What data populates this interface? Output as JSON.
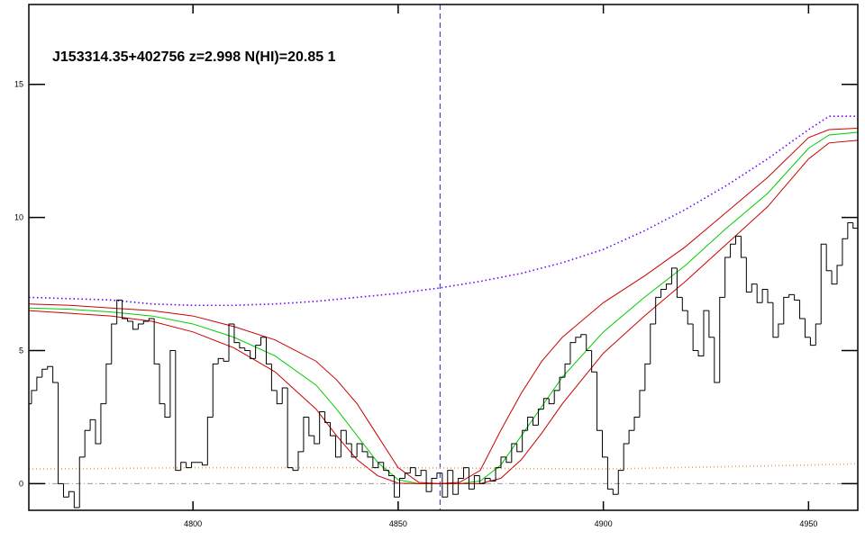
{
  "chart_data": {
    "type": "spectrum",
    "title": "J153314.35+402756 z=2.998 N(HI)=20.85 1",
    "xlim": [
      4760,
      4962
    ],
    "ylim": [
      -1,
      18
    ],
    "xticks": [
      4800,
      4850,
      4900,
      4950
    ],
    "yticks": [
      0,
      5,
      10,
      15
    ],
    "hlines": [
      0
    ],
    "vlines": [
      4860.2
    ],
    "flux": {
      "color": "#000000",
      "x": [
        4760.0,
        4761.3,
        4762.6,
        4763.9,
        4765.2,
        4766.5,
        4767.8,
        4769.1,
        4770.4,
        4771.7,
        4773.0,
        4774.3,
        4775.6,
        4776.9,
        4778.2,
        4779.5,
        4780.8,
        4782.1,
        4783.4,
        4784.7,
        4786.0,
        4787.3,
        4788.6,
        4789.9,
        4791.2,
        4792.5,
        4793.8,
        4795.1,
        4796.4,
        4797.7,
        4799.0,
        4800.3,
        4801.6,
        4802.9,
        4804.2,
        4805.5,
        4806.8,
        4808.1,
        4809.4,
        4810.7,
        4812.0,
        4813.3,
        4814.6,
        4815.9,
        4817.2,
        4818.5,
        4819.8,
        4821.1,
        4822.4,
        4823.7,
        4825.0,
        4826.3,
        4827.6,
        4828.9,
        4830.2,
        4831.5,
        4832.8,
        4834.1,
        4835.4,
        4836.7,
        4838.0,
        4839.3,
        4840.6,
        4841.9,
        4843.2,
        4844.5,
        4845.8,
        4847.1,
        4848.4,
        4849.7,
        4851.0,
        4852.3,
        4853.6,
        4854.9,
        4856.2,
        4857.5,
        4858.8,
        4860.1,
        4861.4,
        4862.7,
        4864.0,
        4865.3,
        4866.6,
        4867.9,
        4869.2,
        4870.5,
        4871.8,
        4873.1,
        4874.4,
        4875.7,
        4877.0,
        4878.3,
        4879.6,
        4880.9,
        4882.2,
        4883.5,
        4884.8,
        4886.1,
        4887.4,
        4888.7,
        4890.0,
        4891.3,
        4892.6,
        4893.9,
        4895.2,
        4896.5,
        4897.8,
        4899.1,
        4900.4,
        4901.7,
        4903.0,
        4904.3,
        4905.6,
        4906.9,
        4908.2,
        4909.5,
        4910.8,
        4912.1,
        4913.4,
        4914.7,
        4916.0,
        4917.3,
        4918.6,
        4919.9,
        4921.2,
        4922.5,
        4923.8,
        4925.1,
        4926.4,
        4927.7,
        4929.0,
        4930.3,
        4931.6,
        4932.9,
        4934.2,
        4935.5,
        4936.8,
        4938.1,
        4939.4,
        4940.7,
        4942.0,
        4943.3,
        4944.6,
        4945.9,
        4947.2,
        4948.5,
        4949.8,
        4951.1,
        4952.4,
        4953.7,
        4955.0,
        4956.3,
        4957.6,
        4958.9,
        4960.2,
        4961.5
      ],
      "values": [
        3.0,
        3.5,
        4.0,
        4.3,
        4.4,
        3.8,
        0.0,
        -0.5,
        -0.3,
        -0.9,
        1.0,
        2.0,
        2.4,
        1.5,
        3.0,
        4.5,
        6.0,
        6.9,
        6.2,
        6.1,
        5.8,
        6.0,
        6.1,
        6.2,
        4.5,
        3.0,
        2.5,
        5.0,
        0.5,
        0.8,
        0.6,
        0.8,
        0.8,
        0.7,
        2.5,
        4.5,
        4.7,
        4.6,
        6.0,
        5.3,
        5.1,
        5.0,
        4.7,
        5.2,
        5.5,
        4.5,
        3.5,
        3.0,
        3.6,
        0.6,
        0.5,
        1.2,
        2.5,
        1.8,
        1.5,
        2.7,
        2.3,
        1.8,
        1.0,
        2.0,
        1.5,
        1.0,
        1.5,
        1.2,
        1.0,
        0.6,
        0.8,
        0.5,
        0.3,
        -0.5,
        0.2,
        0.4,
        0.6,
        0.3,
        0.5,
        -0.3,
        0.2,
        0.4,
        -0.5,
        0.5,
        -0.4,
        0.2,
        0.6,
        -0.2,
        0.3,
        0.0,
        0.2,
        0.1,
        0.6,
        1.0,
        0.8,
        1.5,
        1.2,
        2.0,
        2.5,
        2.2,
        2.8,
        3.2,
        3.0,
        3.5,
        4.0,
        4.5,
        5.3,
        5.5,
        5.6,
        5.0,
        4.2,
        2.0,
        1.0,
        -0.2,
        -0.4,
        0.5,
        1.5,
        2.0,
        2.5,
        3.5,
        4.5,
        6.0,
        7.0,
        7.3,
        7.5,
        8.1,
        7.0,
        6.5,
        6.0,
        5.0,
        4.8,
        6.5,
        5.5,
        3.8,
        7.0,
        8.5,
        9.0,
        9.3,
        8.5,
        7.2,
        7.5,
        6.8,
        7.3,
        6.8,
        5.5,
        6.0,
        7.0,
        7.1,
        6.9,
        6.2,
        5.5,
        5.2,
        6.0,
        9.0,
        8.0,
        7.5,
        8.2,
        9.2,
        9.8,
        9.6
      ]
    },
    "models": [
      {
        "color": "#00cc00",
        "dash": "none",
        "x": [
          4760,
          4770,
          4780,
          4790,
          4800,
          4810,
          4820,
          4830,
          4835,
          4840,
          4845,
          4850,
          4855,
          4860,
          4865,
          4870,
          4875,
          4880,
          4885,
          4890,
          4900,
          4910,
          4920,
          4930,
          4940,
          4950,
          4955,
          4962
        ],
        "values": [
          6.6,
          6.55,
          6.45,
          6.3,
          6.0,
          5.5,
          4.8,
          3.7,
          2.8,
          1.8,
          0.8,
          0.15,
          0,
          0,
          0,
          0.1,
          0.7,
          1.8,
          2.9,
          4.0,
          5.7,
          7.0,
          8.2,
          9.6,
          10.9,
          12.6,
          13.1,
          13.2
        ]
      },
      {
        "color": "#cc0000",
        "dash": "none",
        "x": [
          4760,
          4770,
          4780,
          4790,
          4800,
          4810,
          4820,
          4830,
          4835,
          4840,
          4845,
          4850,
          4855,
          4860,
          4865,
          4870,
          4875,
          4880,
          4885,
          4890,
          4900,
          4910,
          4920,
          4930,
          4940,
          4950,
          4955,
          4962
        ],
        "values": [
          6.75,
          6.7,
          6.6,
          6.5,
          6.3,
          5.9,
          5.4,
          4.6,
          3.9,
          3.0,
          1.8,
          0.6,
          0.05,
          0,
          0.05,
          0.5,
          2.0,
          3.4,
          4.6,
          5.5,
          6.8,
          7.8,
          8.9,
          10.2,
          11.5,
          13.0,
          13.3,
          13.35
        ]
      },
      {
        "color": "#cc0000",
        "dash": "none",
        "x": [
          4760,
          4770,
          4780,
          4790,
          4800,
          4810,
          4820,
          4830,
          4835,
          4840,
          4845,
          4850,
          4855,
          4860,
          4865,
          4870,
          4875,
          4880,
          4885,
          4890,
          4900,
          4910,
          4920,
          4930,
          4940,
          4950,
          4955,
          4962
        ],
        "values": [
          6.5,
          6.4,
          6.3,
          6.1,
          5.7,
          5.1,
          4.2,
          2.8,
          1.8,
          0.9,
          0.3,
          0.02,
          0,
          0,
          0,
          0,
          0.2,
          0.9,
          1.9,
          3.0,
          4.9,
          6.3,
          7.6,
          9.0,
          10.4,
          12.2,
          12.8,
          12.9
        ]
      },
      {
        "color": "#6600ff",
        "dash": "1.5 3",
        "x": [
          4760,
          4770,
          4780,
          4790,
          4800,
          4810,
          4820,
          4830,
          4840,
          4850,
          4860,
          4870,
          4880,
          4890,
          4900,
          4910,
          4920,
          4930,
          4940,
          4950,
          4955,
          4962
        ],
        "values": [
          7.0,
          6.95,
          6.9,
          6.75,
          6.7,
          6.7,
          6.75,
          6.85,
          7.0,
          7.15,
          7.35,
          7.6,
          7.9,
          8.3,
          8.8,
          9.5,
          10.3,
          11.2,
          12.2,
          13.3,
          13.8,
          13.8
        ]
      },
      {
        "color": "#e8a060",
        "dash": "1 3",
        "x": [
          4760,
          4800,
          4850,
          4900,
          4950,
          4962
        ],
        "values": [
          0.55,
          0.6,
          0.6,
          0.55,
          0.7,
          0.75
        ]
      }
    ]
  }
}
